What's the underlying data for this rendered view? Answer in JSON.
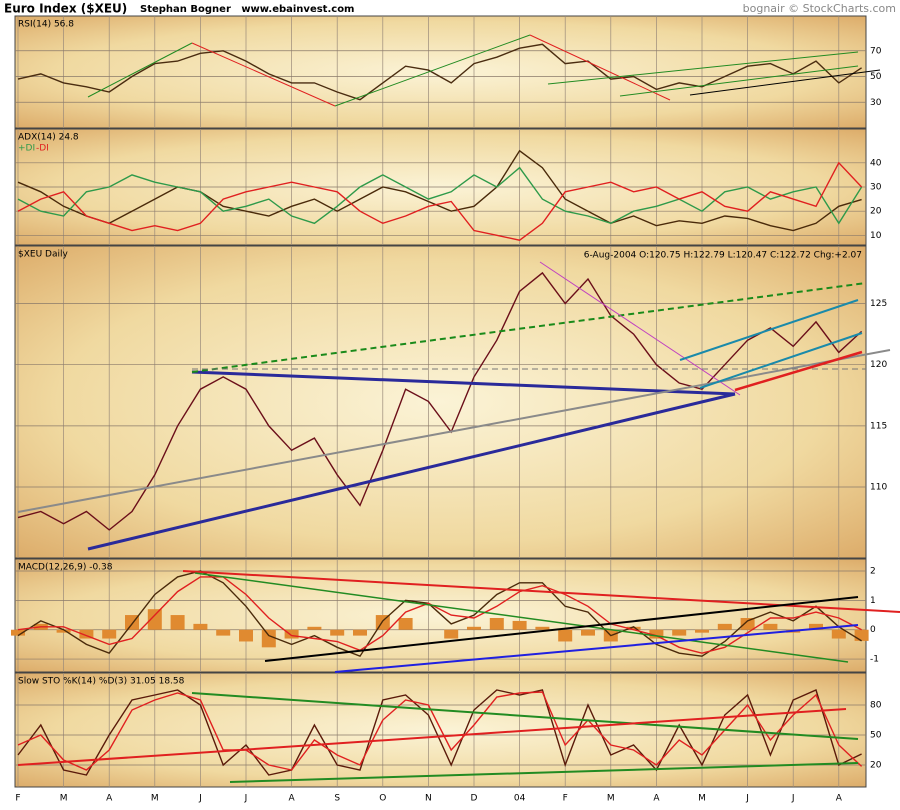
{
  "header": {
    "title": "Euro Index ($XEU)",
    "author": "Stephan Bogner   www.ebainvest.com",
    "credit": "bognair © StockCharts.com"
  },
  "chart_data": [
    {
      "type": "line",
      "label": "RSI(14) 56.8",
      "ylim": [
        10,
        97
      ],
      "yticks": [
        30,
        50,
        70
      ],
      "series": [
        {
          "color": "#4a2c10",
          "values": [
            48,
            52,
            45,
            42,
            38,
            50,
            60,
            62,
            68,
            70,
            62,
            52,
            45,
            45,
            38,
            32,
            45,
            58,
            55,
            45,
            60,
            65,
            72,
            75,
            60,
            62,
            48,
            50,
            40,
            45,
            42,
            50,
            58,
            60,
            52,
            62,
            45,
            56.8
          ]
        }
      ]
    },
    {
      "type": "line",
      "label": "ADX(14) 24.8",
      "ylim": [
        6,
        54
      ],
      "yticks": [
        10,
        20,
        30,
        40
      ],
      "series": [
        {
          "color": "#4a2a0a",
          "values": [
            32,
            28,
            22,
            18,
            15,
            20,
            25,
            30,
            28,
            22,
            20,
            18,
            22,
            25,
            20,
            25,
            30,
            28,
            24,
            20,
            22,
            30,
            45,
            38,
            25,
            20,
            15,
            18,
            14,
            16,
            15,
            18,
            17,
            14,
            12,
            15,
            22,
            24.8
          ]
        },
        {
          "name": "+DI",
          "color": "#2e9a4a",
          "values": [
            25,
            20,
            18,
            28,
            30,
            35,
            32,
            30,
            28,
            20,
            22,
            25,
            18,
            15,
            22,
            30,
            35,
            30,
            25,
            28,
            35,
            30,
            38,
            25,
            20,
            18,
            15,
            20,
            22,
            25,
            20,
            28,
            30,
            25,
            28,
            30,
            15,
            30
          ]
        },
        {
          "name": "-DI",
          "color": "#e02020",
          "values": [
            20,
            25,
            28,
            18,
            15,
            12,
            14,
            12,
            15,
            25,
            28,
            30,
            32,
            30,
            28,
            20,
            15,
            18,
            22,
            24,
            12,
            10,
            8,
            15,
            28,
            30,
            32,
            28,
            30,
            25,
            28,
            22,
            20,
            28,
            25,
            22,
            40,
            30
          ]
        }
      ]
    },
    {
      "type": "line",
      "label": "$XEU Daily",
      "info": "6-Aug-2004  O:120.75  H:122.79  L:120.47  C:122.72  Chg:+2.07",
      "ylim": [
        104.2,
        129.7
      ],
      "yticks": [
        110,
        115,
        120,
        125
      ],
      "series": [
        {
          "color": "#6b0f1a",
          "values": [
            107.5,
            108,
            107,
            108,
            106.5,
            108,
            111,
            115,
            118,
            119,
            118,
            115,
            113,
            114,
            111,
            108.5,
            113,
            118,
            117,
            114.5,
            119,
            122,
            126,
            127.5,
            125,
            127,
            124,
            122.5,
            120,
            118.5,
            118,
            120,
            122,
            123,
            121.5,
            123.5,
            121,
            122.72
          ]
        }
      ]
    },
    {
      "type": "line",
      "label": "MACD(12,26,9) -0.38",
      "ylim": [
        -1.44,
        2.41
      ],
      "yticks": [
        -1,
        0,
        1,
        2
      ],
      "series": [
        {
          "color": "#e08a30",
          "kind": "bar",
          "values": [
            -0.2,
            0.2,
            -0.1,
            -0.3,
            -0.3,
            0.5,
            0.7,
            0.5,
            0.2,
            -0.2,
            -0.4,
            -0.6,
            -0.3,
            0.1,
            -0.2,
            -0.2,
            0.5,
            0.4,
            0,
            -0.3,
            0.1,
            0.4,
            0.3,
            0.1,
            -0.4,
            -0.2,
            -0.4,
            0.1,
            -0.3,
            -0.2,
            -0.1,
            0.2,
            0.4,
            0.2,
            -0.1,
            0.2,
            -0.3,
            -0.38
          ]
        },
        {
          "color": "#4a2a0a",
          "values": [
            -0.2,
            0.3,
            0.0,
            -0.5,
            -0.8,
            0.2,
            1.2,
            1.8,
            2.0,
            1.6,
            0.8,
            -0.2,
            -0.5,
            -0.2,
            -0.6,
            -0.9,
            0.3,
            1.0,
            0.9,
            0.2,
            0.5,
            1.2,
            1.6,
            1.6,
            0.8,
            0.6,
            -0.2,
            0.1,
            -0.5,
            -0.8,
            -0.9,
            -0.4,
            0.3,
            0.6,
            0.3,
            0.8,
            0.1,
            -0.38
          ]
        },
        {
          "color": "#e02020",
          "values": [
            0.0,
            0.1,
            0.1,
            -0.2,
            -0.5,
            -0.3,
            0.5,
            1.3,
            1.8,
            1.8,
            1.2,
            0.4,
            -0.2,
            -0.3,
            -0.4,
            -0.7,
            -0.2,
            0.6,
            0.9,
            0.5,
            0.4,
            0.8,
            1.3,
            1.5,
            1.2,
            0.8,
            0.2,
            0.0,
            -0.2,
            -0.6,
            -0.8,
            -0.6,
            -0.1,
            0.4,
            0.4,
            0.6,
            0.4,
            0.0
          ]
        }
      ]
    },
    {
      "type": "line",
      "label": "Slow STO %K(14) %D(3) 31.05 18.58",
      "ylim": [
        -2,
        112
      ],
      "yticks": [
        20,
        50,
        80
      ],
      "categories": [
        "F",
        null,
        "M",
        null,
        "A",
        null,
        "M",
        null,
        "J",
        null,
        "J",
        null,
        "A",
        null,
        "S",
        null,
        "O",
        null,
        "N",
        null,
        "D",
        null,
        "04",
        null,
        "F",
        null,
        "M",
        null,
        "A",
        null,
        "M",
        null,
        "J",
        null,
        "J",
        null,
        "A",
        null
      ],
      "series": [
        {
          "color": "#5a1a0a",
          "values": [
            30,
            60,
            15,
            10,
            50,
            85,
            90,
            95,
            80,
            20,
            40,
            10,
            15,
            60,
            20,
            15,
            85,
            90,
            70,
            20,
            75,
            95,
            90,
            95,
            20,
            80,
            30,
            40,
            15,
            60,
            20,
            70,
            90,
            30,
            85,
            95,
            20,
            31.05
          ]
        },
        {
          "color": "#e02020",
          "values": [
            40,
            50,
            25,
            15,
            35,
            75,
            85,
            92,
            85,
            35,
            35,
            20,
            15,
            45,
            30,
            20,
            65,
            85,
            80,
            35,
            60,
            88,
            92,
            93,
            40,
            65,
            40,
            35,
            20,
            45,
            30,
            55,
            80,
            45,
            70,
            90,
            40,
            18.58
          ]
        }
      ]
    }
  ]
}
